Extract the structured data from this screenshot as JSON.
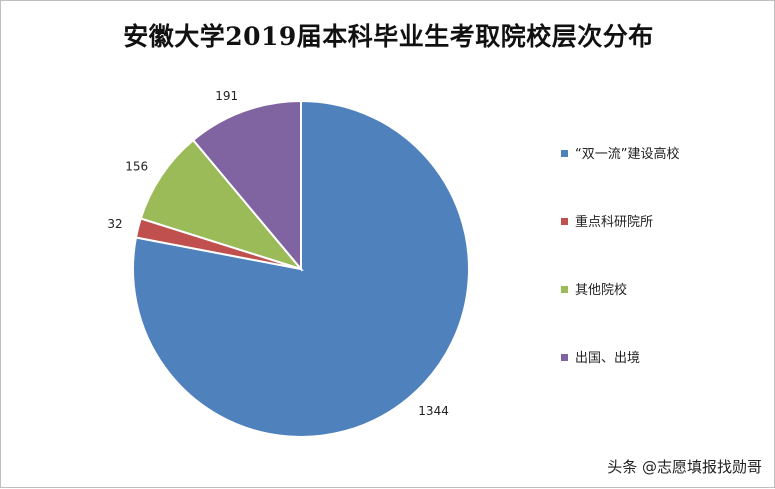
{
  "chart_data": {
    "type": "pie",
    "title": "安徽大学2019届本科毕业生考取院校层次分布",
    "categories": [
      "“双一流”建设高校",
      "重点科研院所",
      "其他院校",
      "出国、出境"
    ],
    "values": [
      1344,
      32,
      156,
      191
    ],
    "colors": [
      "#4f81bd",
      "#c0504d",
      "#9bbb59",
      "#8064a2"
    ],
    "legend": "right"
  },
  "watermark": "头条 @志愿填报找勋哥"
}
